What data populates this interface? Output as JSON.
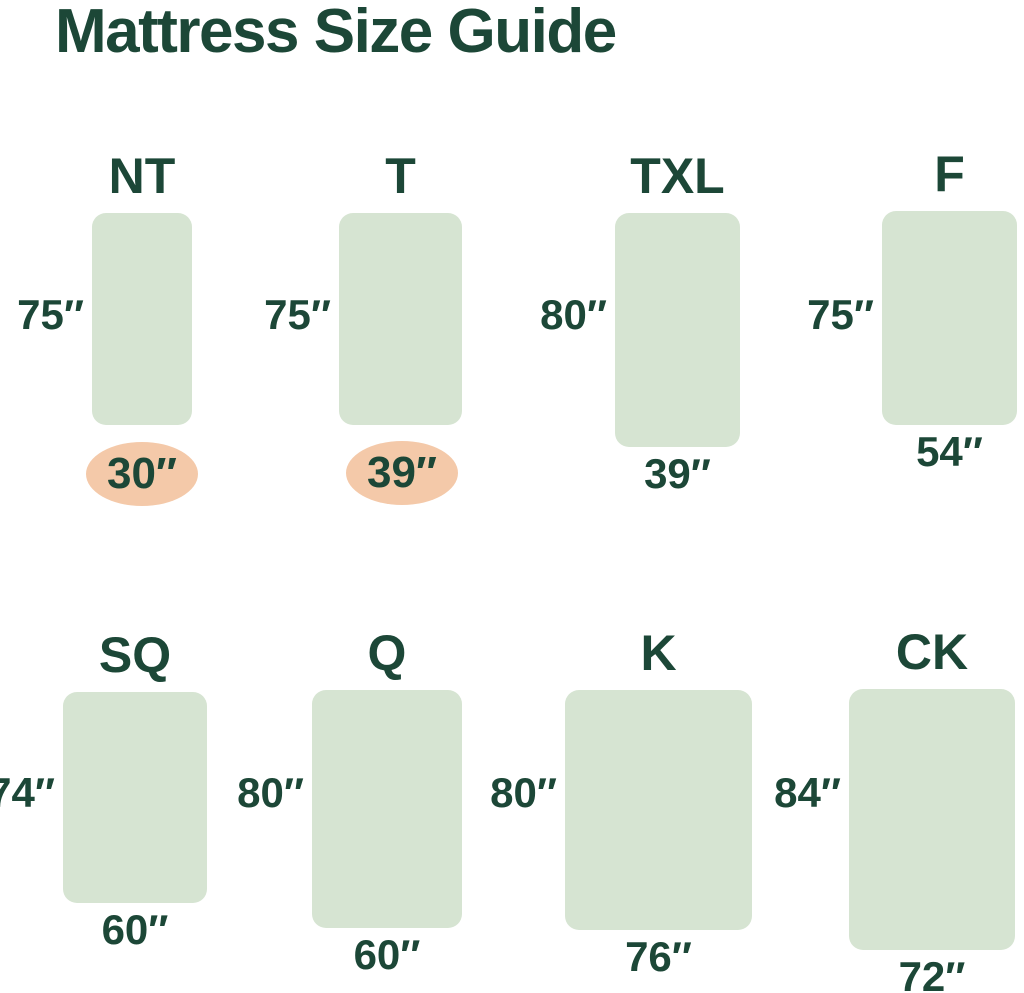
{
  "title": "Mattress Size Guide",
  "colors": {
    "background": "#ffffff",
    "mattress_fill": "#d6e4d2",
    "text_green": "#1c4737",
    "highlight_peach": "#f4c9a9"
  },
  "mattresses": [
    {
      "code": "NT",
      "height_in": 75,
      "width_in": 30,
      "height_label": "75″",
      "width_label": "30″",
      "width_highlighted": true
    },
    {
      "code": "T",
      "height_in": 75,
      "width_in": 39,
      "height_label": "75″",
      "width_label": "39″",
      "width_highlighted": true
    },
    {
      "code": "TXL",
      "height_in": 80,
      "width_in": 39,
      "height_label": "80″",
      "width_label": "39″",
      "width_highlighted": false
    },
    {
      "code": "F",
      "height_in": 75,
      "width_in": 54,
      "height_label": "75″",
      "width_label": "54″",
      "width_highlighted": false
    },
    {
      "code": "SQ",
      "height_in": 74,
      "width_in": 60,
      "height_label": "74″",
      "width_label": "60″",
      "width_highlighted": false
    },
    {
      "code": "Q",
      "height_in": 80,
      "width_in": 60,
      "height_label": "80″",
      "width_label": "60″",
      "width_highlighted": false
    },
    {
      "code": "K",
      "height_in": 80,
      "width_in": 76,
      "height_label": "80″",
      "width_label": "76″",
      "width_highlighted": false
    },
    {
      "code": "CK",
      "height_in": 84,
      "width_in": 72,
      "height_label": "84″",
      "width_label": "72″",
      "width_highlighted": false
    }
  ]
}
